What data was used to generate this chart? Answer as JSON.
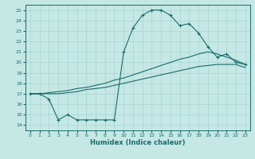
{
  "xlabel": "Humidex (Indice chaleur)",
  "xlim": [
    -0.5,
    23.5
  ],
  "ylim": [
    13.5,
    25.5
  ],
  "yticks": [
    14,
    15,
    16,
    17,
    18,
    19,
    20,
    21,
    22,
    23,
    24,
    25
  ],
  "xticks": [
    0,
    1,
    2,
    3,
    4,
    5,
    6,
    7,
    8,
    9,
    10,
    11,
    12,
    13,
    14,
    15,
    16,
    17,
    18,
    19,
    20,
    21,
    22,
    23
  ],
  "bg_color": "#c5e8e5",
  "grid_color": "#a8d4d0",
  "line_color": "#1a6b6b",
  "line1_x": [
    0,
    1,
    2,
    3,
    4,
    5,
    6,
    7,
    8,
    9,
    10,
    11,
    12,
    13,
    14,
    15,
    16,
    17,
    18,
    19,
    20,
    21,
    22,
    23
  ],
  "line1_y": [
    17.0,
    17.0,
    16.5,
    14.5,
    15.0,
    14.5,
    14.5,
    14.5,
    14.5,
    14.5,
    21.0,
    23.3,
    24.5,
    25.0,
    25.0,
    24.5,
    23.5,
    23.7,
    22.8,
    21.5,
    20.5,
    20.8,
    20.0,
    19.8
  ],
  "line2_x": [
    0,
    1,
    2,
    3,
    4,
    5,
    6,
    7,
    8,
    9,
    10,
    11,
    12,
    13,
    14,
    15,
    16,
    17,
    18,
    19,
    20,
    21,
    22,
    23
  ],
  "line2_y": [
    17.0,
    17.0,
    17.1,
    17.2,
    17.3,
    17.5,
    17.6,
    17.8,
    18.0,
    18.3,
    18.5,
    18.8,
    19.1,
    19.4,
    19.7,
    20.0,
    20.3,
    20.5,
    20.8,
    21.0,
    20.8,
    20.5,
    20.2,
    19.8
  ],
  "line3_x": [
    0,
    1,
    2,
    3,
    4,
    5,
    6,
    7,
    8,
    9,
    10,
    11,
    12,
    13,
    14,
    15,
    16,
    17,
    18,
    19,
    20,
    21,
    22,
    23
  ],
  "line3_y": [
    17.0,
    17.0,
    17.0,
    17.0,
    17.1,
    17.2,
    17.4,
    17.5,
    17.6,
    17.8,
    18.0,
    18.2,
    18.4,
    18.6,
    18.8,
    19.0,
    19.2,
    19.4,
    19.6,
    19.7,
    19.8,
    19.8,
    19.8,
    19.5
  ]
}
